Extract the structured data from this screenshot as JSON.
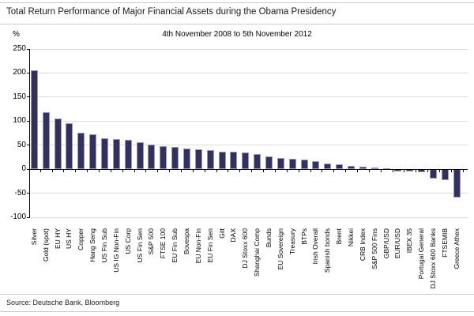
{
  "chart_data": {
    "type": "bar",
    "title": "Total Return Performance of Major Financial Assets during the Obama Presidency",
    "subtitle": "4th November 2008 to 5th November 2012",
    "unit_label": "%",
    "source": "Source: Deutsche Bank, Bloomberg",
    "ylim": [
      -100,
      250
    ],
    "yticks": [
      250,
      200,
      150,
      100,
      50,
      0,
      -50,
      -100
    ],
    "grid": "horizontal-light-gray",
    "legend": "none",
    "bar_color": "#32315e",
    "bar_border_color": "#9898c2",
    "categories": [
      "Silver",
      "Gold (spot)",
      "EU HY",
      "US HY",
      "Copper",
      "Hang Seng",
      "US Fin Sub",
      "US IG Non-Fin",
      "US Corp",
      "US Fin Sen",
      "S&P 500",
      "FTSE 100",
      "EU Fin Sub",
      "Bovespa",
      "EU Non-Fin",
      "EU Fin Sen",
      "Gilt",
      "DAX",
      "DJ Stoxx 600",
      "Shanghai Comp",
      "Bunds",
      "EU Sovereign",
      "Treasury",
      "BTPs",
      "Irish Overall",
      "Spanish bonds",
      "Brent",
      "Nikkei",
      "CRB Index",
      "S&P 500 Fins",
      "GBP/USD",
      "EUR/USD",
      "IBEX 35",
      "Portugal General",
      "DJ Stoxx 600 Banks",
      "FTSEMIB",
      "Greece Athex"
    ],
    "values": [
      205,
      119,
      106,
      95,
      76,
      73,
      65,
      63,
      61,
      56,
      52,
      48,
      47,
      43,
      42,
      39,
      37,
      37,
      35,
      32,
      27,
      23,
      22,
      20,
      17,
      12,
      11,
      7,
      5,
      4,
      2,
      -4,
      -5,
      -6,
      -20,
      -23,
      -59
    ]
  }
}
